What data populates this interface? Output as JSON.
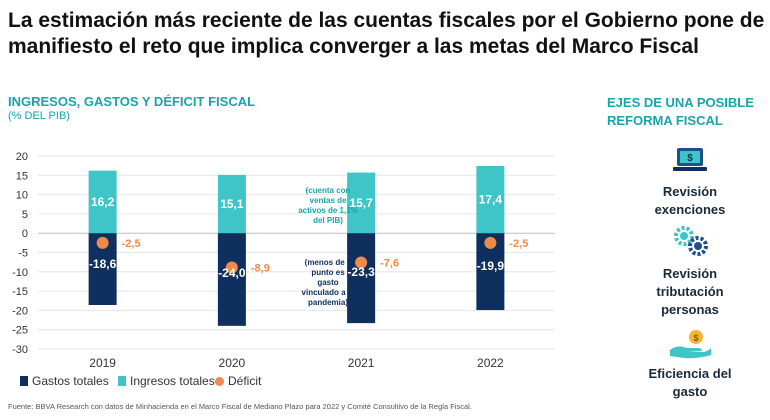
{
  "page": {
    "title": "La estimación más reciente de las cuentas fiscales por el Gobierno pone de manifiesto el reto que implica converger a las metas del Marco Fiscal",
    "source": "Fuente: BBVA Research con datos de Minhacienda en el Marco Fiscal de Mediano Plazo para 2022 y Comité Consultivo de la Regla Fiscal."
  },
  "colors": {
    "gastos": "#0f2f5f",
    "ingresos": "#3fc4c7",
    "deficit": "#f08a4b",
    "accent": "#1aa3a8"
  },
  "chart_data": {
    "type": "bar",
    "title": "INGRESOS, GASTOS Y DÉFICIT FISCAL",
    "subtitle": "(% DEL PIB)",
    "categories": [
      "2019",
      "2020",
      "2021",
      "2022"
    ],
    "series": [
      {
        "name": "Gastos totales",
        "values": [
          -18.6,
          -24.0,
          -23.3,
          -19.9
        ],
        "labels": [
          "-18,6",
          "-24,0",
          "-23,3",
          "-19,9"
        ]
      },
      {
        "name": "Ingresos totales",
        "values": [
          16.2,
          15.1,
          15.7,
          17.4
        ],
        "labels": [
          "16,2",
          "15,1",
          "15,7",
          "17,4"
        ]
      },
      {
        "name": "Déficit",
        "values": [
          -2.5,
          -8.9,
          -7.6,
          -2.5
        ],
        "labels": [
          "-2,5",
          "-8,9",
          "-7,6",
          "-2,5"
        ]
      }
    ],
    "yticks": [
      "20",
      "15",
      "10",
      "5",
      "0",
      "-5",
      "-10",
      "-15",
      "-20",
      "-25",
      "-30"
    ],
    "ylim": [
      -30,
      20
    ],
    "annotations": [
      "(cuenta con ventas de activos de 1,1% del PIB)",
      "(menos de 1 punto es gasto vinculado a la pandemia)"
    ]
  },
  "sidebar": {
    "title": "EJES DE UNA POSIBLE REFORMA FISCAL",
    "items": [
      {
        "label": "Revisión exenciones",
        "icon": "laptop-icon"
      },
      {
        "label": "Revisión tributación personas",
        "icon": "gears-icon"
      },
      {
        "label": "Eficiencia del gasto",
        "icon": "hand-coin-icon"
      }
    ]
  }
}
